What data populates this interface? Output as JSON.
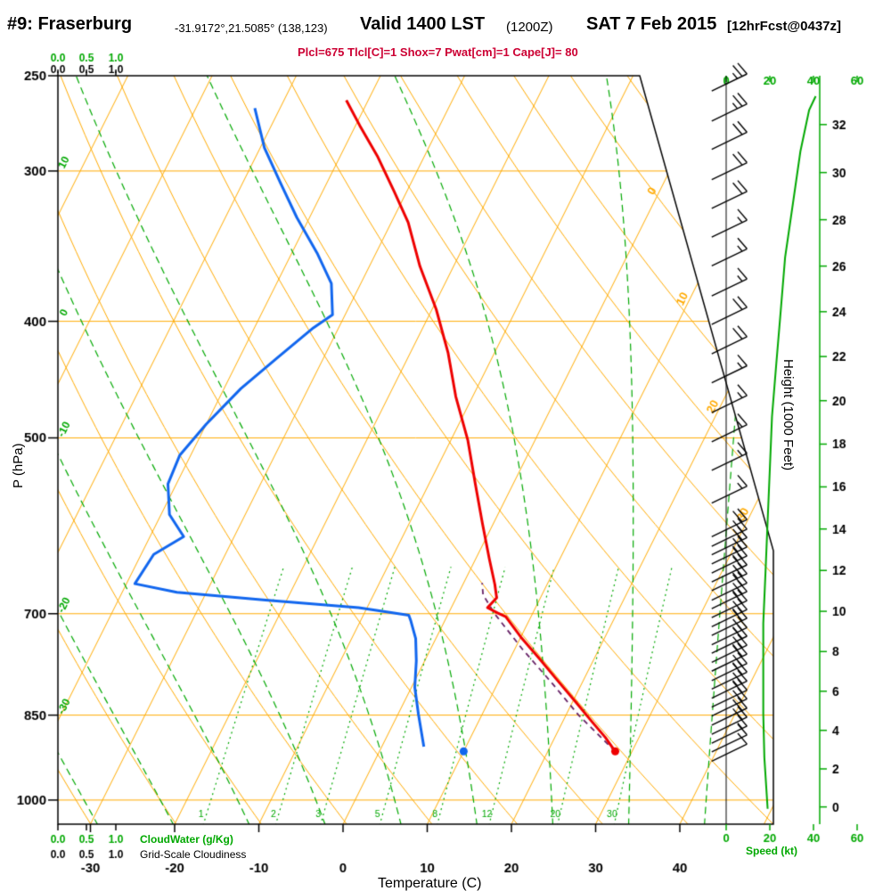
{
  "title": {
    "station": "#9: Fraserburg",
    "coords": "-31.9172°,21.5085° (138,123)",
    "valid": "Valid 1400 LST",
    "zulu": "(1200Z)",
    "date": "SAT 7 Feb 2015",
    "fcst": "[12hrFcst@0437z]"
  },
  "params_line": "Plcl=675 Tlcl[C]=1 Shox=7 Pwat[cm]=1 Cape[J]= 80",
  "axis_labels": {
    "pressure": "P (hPa)",
    "temperature": "Temperature (C)",
    "height": "Height (1000 Feet)",
    "speed": "Speed (kt)",
    "cloudwater": "CloudWater (g/Kg)",
    "gridscale": "Grid-Scale Cloudiness"
  },
  "chart_data": {
    "type": "line",
    "diagram": "skew-t-log-p",
    "title": "#9: Fraserburg Valid 1400 LST (1200Z) SAT 7 Feb 2015",
    "xlabel": "Temperature (C)",
    "ylabel": "P (hPa)",
    "pressure_ticks": [
      250,
      300,
      400,
      500,
      700,
      850,
      1000
    ],
    "temp_ticks": [
      -30,
      -20,
      -10,
      0,
      10,
      20,
      30,
      40
    ],
    "height_ticks": [
      0,
      2,
      4,
      6,
      8,
      10,
      12,
      14,
      16,
      18,
      20,
      22,
      24,
      26,
      28,
      30,
      32
    ],
    "speed_ticks": [
      0,
      20,
      40,
      60
    ],
    "cloud_ticks": [
      "0.0",
      "0.5",
      "1.0"
    ],
    "mixing_ratio_lines": [
      1,
      2,
      3,
      5,
      8,
      12,
      20,
      30
    ],
    "isotherm_edge_labels": [
      0,
      10,
      20,
      30
    ],
    "moist_edge_labels": [
      {
        "p": 300,
        "v": 10
      },
      {
        "p": 400,
        "v": 0
      },
      {
        "p": 500,
        "v": -10
      },
      {
        "p": 700,
        "v": -20
      },
      {
        "p": 850,
        "v": -30
      }
    ],
    "temperature_trace": [
      [
        262,
        -42.6
      ],
      [
        275,
        -39.5
      ],
      [
        292,
        -35.5
      ],
      [
        312,
        -31.5
      ],
      [
        331,
        -28
      ],
      [
        360,
        -24
      ],
      [
        391,
        -19.5
      ],
      [
        425,
        -15.5
      ],
      [
        462,
        -12
      ],
      [
        502,
        -8
      ],
      [
        546,
        -4.5
      ],
      [
        589,
        -1.3
      ],
      [
        630,
        1.6
      ],
      [
        662,
        3.8
      ],
      [
        679,
        4.8
      ],
      [
        692,
        4.3
      ],
      [
        699,
        5.8
      ],
      [
        704,
        7
      ],
      [
        732,
        10
      ],
      [
        763,
        13.5
      ],
      [
        796,
        17
      ],
      [
        830,
        20.5
      ],
      [
        861,
        23.5
      ],
      [
        887,
        26
      ],
      [
        911,
        28
      ]
    ],
    "dewpoint_trace": [
      [
        266,
        -53
      ],
      [
        287,
        -49.5
      ],
      [
        307,
        -45.5
      ],
      [
        328,
        -41.5
      ],
      [
        351,
        -37
      ],
      [
        372,
        -33.5
      ],
      [
        395,
        -31.5
      ],
      [
        405,
        -33
      ],
      [
        429,
        -35.5
      ],
      [
        455,
        -38
      ],
      [
        487,
        -40
      ],
      [
        517,
        -41.3
      ],
      [
        546,
        -41
      ],
      [
        579,
        -39
      ],
      [
        604,
        -36
      ],
      [
        625,
        -38.5
      ],
      [
        661,
        -39
      ],
      [
        672,
        -33.5
      ],
      [
        682,
        -22.5
      ],
      [
        692,
        -11
      ],
      [
        702,
        -4.6
      ],
      [
        710,
        -4
      ],
      [
        734,
        -2.4
      ],
      [
        766,
        -1
      ],
      [
        806,
        0.4
      ],
      [
        848,
        2.4
      ],
      [
        903,
        5
      ]
    ],
    "parcel_trace": [
      [
        911,
        28
      ],
      [
        850,
        21.5
      ],
      [
        800,
        16.5
      ],
      [
        750,
        11
      ],
      [
        700,
        5.5
      ],
      [
        675,
        3
      ],
      [
        660,
        2.2
      ]
    ],
    "surface_temp_dot": [
      911,
      28
    ],
    "surface_dew_dot": [
      911,
      10
    ],
    "wind_barbs": [
      [
        254,
        25
      ],
      [
        269,
        25
      ],
      [
        284,
        20
      ],
      [
        301,
        20
      ],
      [
        318,
        20
      ],
      [
        336,
        15
      ],
      [
        355,
        15
      ],
      [
        376,
        15
      ],
      [
        397,
        20
      ],
      [
        420,
        20
      ],
      [
        444,
        15
      ],
      [
        470,
        15
      ],
      [
        497,
        15
      ],
      [
        525,
        15
      ],
      [
        559,
        15
      ],
      [
        596,
        20
      ],
      [
        607,
        20
      ],
      [
        617,
        20
      ],
      [
        628,
        25
      ],
      [
        639,
        25
      ],
      [
        650,
        20
      ],
      [
        661,
        25
      ],
      [
        673,
        20
      ],
      [
        684,
        25
      ],
      [
        696,
        20
      ],
      [
        708,
        25
      ],
      [
        720,
        20
      ],
      [
        733,
        25
      ],
      [
        745,
        20
      ],
      [
        758,
        25
      ],
      [
        771,
        20
      ],
      [
        785,
        25
      ],
      [
        798,
        20
      ],
      [
        812,
        25
      ],
      [
        826,
        20
      ],
      [
        840,
        20
      ],
      [
        855,
        20
      ],
      [
        870,
        20
      ],
      [
        885,
        15
      ],
      [
        900,
        10
      ],
      [
        916,
        10
      ]
    ],
    "speed_profile": [
      [
        1017,
        19
      ],
      [
        922,
        17.5
      ],
      [
        848,
        17
      ],
      [
        779,
        17
      ],
      [
        713,
        17
      ],
      [
        648,
        18
      ],
      [
        586,
        19
      ],
      [
        531,
        20
      ],
      [
        480,
        21
      ],
      [
        433,
        23
      ],
      [
        392,
        25
      ],
      [
        354,
        27
      ],
      [
        320,
        30.5
      ],
      [
        289,
        34
      ],
      [
        267,
        38
      ],
      [
        260,
        41
      ]
    ],
    "colors": {
      "grid": "#ffaa00",
      "green": "#00a800",
      "temp": "#ee0000",
      "dew": "#1166ee",
      "parcel": "#662266",
      "barb": "#000000",
      "params": "#cc0033"
    }
  }
}
